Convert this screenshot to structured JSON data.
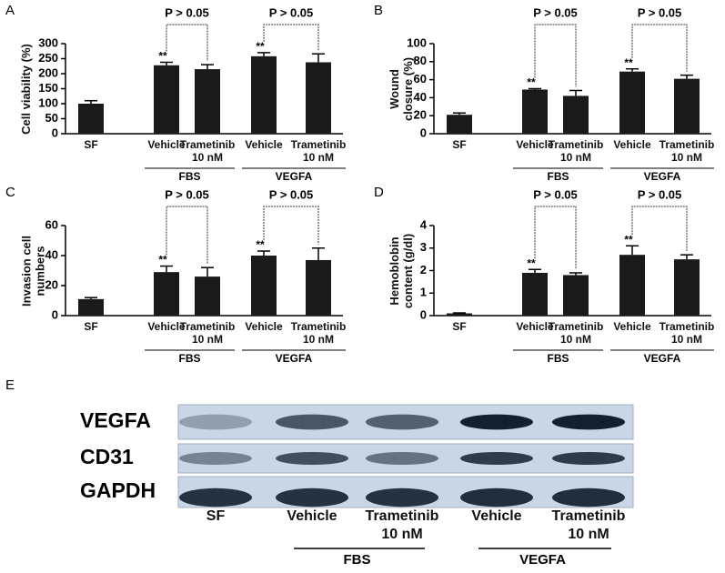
{
  "chart_data": [
    {
      "type": "bar",
      "panel_label": "A",
      "y_label": "Cell viability (%)",
      "categories": [
        "SF",
        "Vehicle",
        "Trametinib 10 nM",
        "Vehicle",
        "Trametinib 10 nM"
      ],
      "values": [
        100,
        228,
        215,
        258,
        238
      ],
      "errors": [
        10,
        10,
        15,
        12,
        28
      ],
      "markers": [
        null,
        "**",
        null,
        "**",
        null
      ],
      "brackets": [
        "P > 0.05",
        "P > 0.05"
      ],
      "groups": [
        "FBS",
        "VEGFA"
      ],
      "color": "#1a1a1a",
      "ylim": [
        0,
        300
      ],
      "yticks": [
        0,
        50,
        100,
        150,
        200,
        250,
        300
      ]
    },
    {
      "type": "bar",
      "panel_label": "B",
      "y_label": "Wound closure (%)",
      "categories": [
        "SF",
        "Vehicle",
        "Trametinib 10 nM",
        "Vehicle",
        "Trametinib 10 nM"
      ],
      "values": [
        21,
        49,
        42,
        69,
        61
      ],
      "errors": [
        2,
        1,
        6,
        3,
        4
      ],
      "markers": [
        null,
        "**",
        null,
        "**",
        null
      ],
      "brackets": [
        "P > 0.05",
        "P > 0.05"
      ],
      "groups": [
        "FBS",
        "VEGFA"
      ],
      "color": "#1a1a1a",
      "ylim": [
        0,
        100
      ],
      "yticks": [
        0,
        20,
        40,
        60,
        80,
        100
      ]
    },
    {
      "type": "bar",
      "panel_label": "C",
      "y_label": "Invasion cell numbers",
      "categories": [
        "SF",
        "Vehicle",
        "Trametinib 10 nM",
        "Vehicle",
        "Trametinib 10 nM"
      ],
      "values": [
        11,
        29,
        26,
        40,
        37
      ],
      "errors": [
        1,
        4,
        6,
        3,
        8
      ],
      "markers": [
        null,
        "**",
        null,
        "**",
        null
      ],
      "brackets": [
        "P > 0.05",
        "P > 0.05"
      ],
      "groups": [
        "FBS",
        "VEGFA"
      ],
      "color": "#1a1a1a",
      "ylim": [
        0,
        60
      ],
      "yticks": [
        0,
        20,
        40,
        60
      ]
    },
    {
      "type": "bar",
      "panel_label": "D",
      "y_label": "Hemoblobin content (g/dl)",
      "categories": [
        "SF",
        "Vehicle",
        "Trametinib 10 nM",
        "Vehicle",
        "Trametinib 10 nM"
      ],
      "values": [
        0.1,
        1.9,
        1.8,
        2.7,
        2.5
      ],
      "errors": [
        0.02,
        0.15,
        0.1,
        0.4,
        0.2
      ],
      "markers": [
        null,
        "**",
        null,
        "**",
        null
      ],
      "brackets": [
        "P > 0.05",
        "P > 0.05"
      ],
      "groups": [
        "FBS",
        "VEGFA"
      ],
      "color": "#1a1a1a",
      "ylim": [
        0,
        4
      ],
      "yticks": [
        0,
        1,
        2,
        3,
        4
      ]
    }
  ],
  "blot": {
    "panel_label": "E",
    "proteins": [
      "VEGFA",
      "CD31",
      "GAPDH"
    ],
    "lanes": [
      "SF",
      "Vehicle",
      "Trametinib 10 nM",
      "Vehicle",
      "Trametinib 10 nM"
    ],
    "groups": [
      "FBS",
      "VEGFA"
    ]
  }
}
